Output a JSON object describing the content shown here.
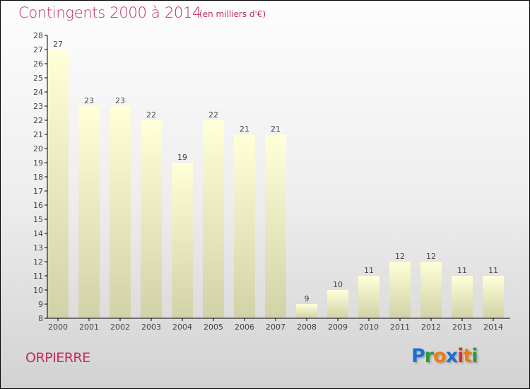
{
  "chart_data": {
    "type": "bar",
    "title": "Contingents 2000 à 2014",
    "subtitle": "(en milliers d'€)",
    "categories": [
      "2000",
      "2001",
      "2002",
      "2003",
      "2004",
      "2005",
      "2006",
      "2007",
      "2008",
      "2009",
      "2010",
      "2011",
      "2012",
      "2013",
      "2014"
    ],
    "values": [
      27,
      23,
      23,
      22,
      19,
      22,
      21,
      21,
      9,
      10,
      11,
      12,
      12,
      11,
      11
    ],
    "ylim": [
      8,
      28
    ],
    "yticks": [
      8,
      9,
      10,
      11,
      12,
      13,
      14,
      15,
      16,
      17,
      18,
      19,
      20,
      21,
      22,
      23,
      24,
      25,
      26,
      27,
      28
    ],
    "xlabel": "",
    "ylabel": "",
    "grid": false,
    "bar_color_top": "#ffffd8",
    "bar_color_bottom": "#d2d2a8"
  },
  "footer": {
    "commune": "ORPIERRE",
    "logo": "Proxiti",
    "logo_colors": [
      "#1a6fd0",
      "#2a9a3a",
      "#f07a10",
      "#1a6fd0",
      "#e03020",
      "#f07a10",
      "#2a9a3a"
    ]
  }
}
